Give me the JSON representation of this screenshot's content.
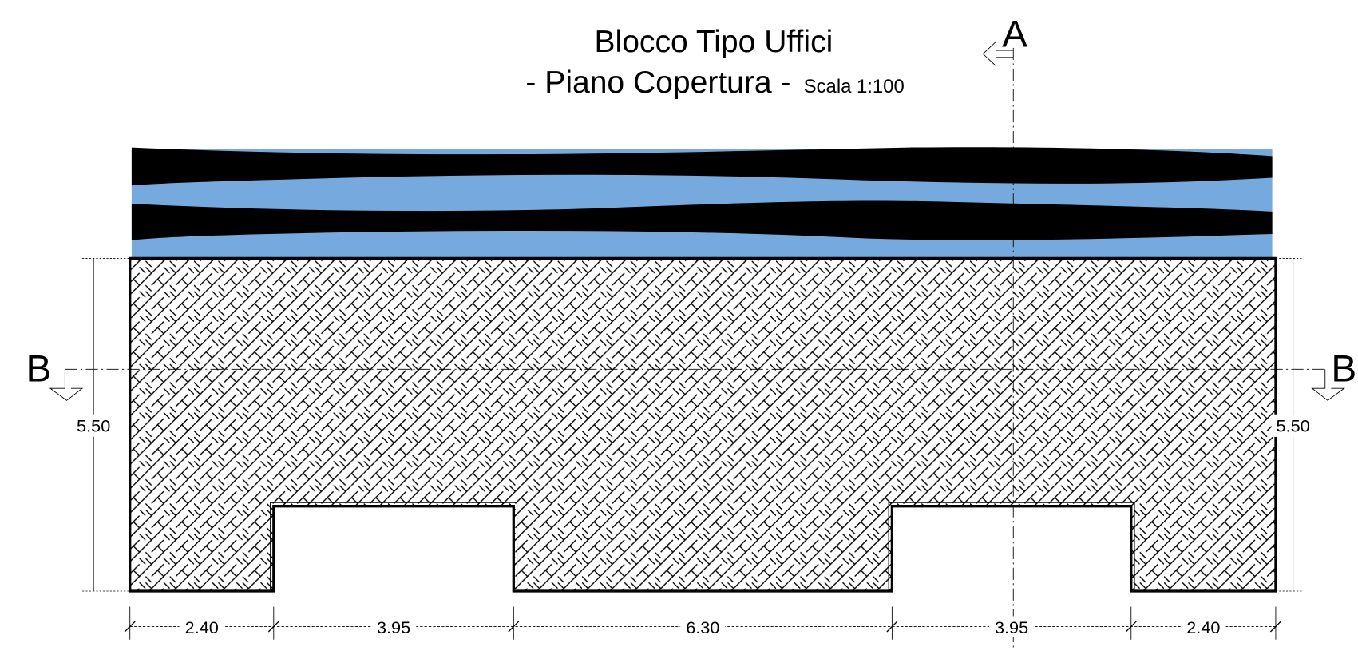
{
  "header": {
    "title": "Blocco Tipo Uffici",
    "subtitle": "- Piano Copertura -",
    "scale": "Scala 1:100"
  },
  "sections": {
    "a": "A",
    "b_left": "B",
    "b_right": "B"
  },
  "dimensions": {
    "height_left": "5.50",
    "height_right": "5.50",
    "widths": [
      "2.40",
      "3.95",
      "6.30",
      "3.95",
      "2.40"
    ]
  }
}
